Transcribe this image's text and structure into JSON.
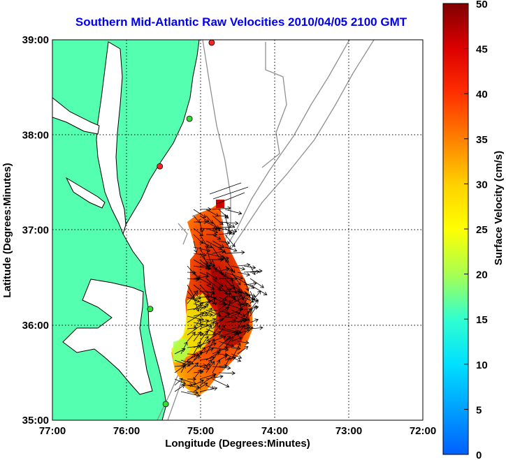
{
  "title": "Southern Mid-Atlantic Raw Velocities 2010/04/05 2100 GMT",
  "x_axis": {
    "label": "Longitude (Degrees:Minutes)",
    "ticks": [
      "77:00",
      "76:00",
      "75:00",
      "74:00",
      "73:00",
      "72:00"
    ]
  },
  "y_axis": {
    "label": "Latitude (Degrees:Minutes)",
    "ticks": [
      "39:00",
      "38:00",
      "37:00",
      "36:00",
      "35:00"
    ]
  },
  "colorbar": {
    "label": "Surface Velocity (cm/s)",
    "ticks": [
      "50",
      "45",
      "40",
      "35",
      "30",
      "25",
      "20",
      "15",
      "10",
      "5",
      "0"
    ],
    "min": 0,
    "max": 50
  },
  "colors": {
    "land": "#55ffb0",
    "water": "#ffffff",
    "title": "#0000ee",
    "bathymetry": "#909090",
    "coastline": "#000000"
  },
  "stations": [
    {
      "lon": -74.85,
      "lat": 38.97,
      "color": "#ff2222"
    },
    {
      "lon": -75.15,
      "lat": 38.17,
      "color": "#33dd33"
    },
    {
      "lon": -75.55,
      "lat": 37.67,
      "color": "#ff2222"
    },
    {
      "lon": -75.68,
      "lat": 36.17,
      "color": "#33dd33"
    },
    {
      "lon": -75.47,
      "lat": 35.17,
      "color": "#33dd33"
    }
  ]
}
